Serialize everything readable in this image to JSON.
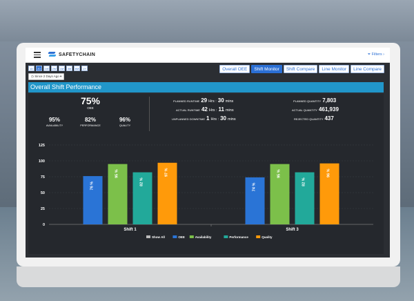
{
  "app": {
    "brand": "SAFETYCHAIN",
    "filters_label": "Filters ›"
  },
  "icons": {
    "menu": "hamburger-icon",
    "logo": "safetychain-logo",
    "clock": "clock-icon",
    "filter": "filter-icon"
  },
  "range_buttons": [
    "1D",
    "2D",
    "1W",
    "2W",
    "1M",
    "3M",
    "6M",
    "1Y"
  ],
  "range_active": "2D",
  "since_label": "Since 2 Days Ago ▾",
  "view_tabs": [
    {
      "label": "Overall OEE",
      "active": false
    },
    {
      "label": "Shift Monitor",
      "active": true
    },
    {
      "label": "Shift Compare",
      "active": false
    },
    {
      "label": "Line Monitor",
      "active": false
    },
    {
      "label": "Line Compare",
      "active": false
    }
  ],
  "section_title": "Overall Shift Performance",
  "summary": {
    "oee": {
      "value": "75%",
      "label": "OEE"
    },
    "availability": {
      "value": "95%",
      "label": "AVAILABILITY"
    },
    "performance": {
      "value": "82%",
      "label": "PERFORMANCE"
    },
    "quality": {
      "value": "96%",
      "label": "QUALITY"
    },
    "planned_runtime": {
      "label": "PLANNED RUNTIME",
      "hrs": "29",
      "mins": "30",
      "hrs_unit": "Hrs :",
      "mins_unit": "mins"
    },
    "actual_runtime": {
      "label": "ACTUAL RUNTIME",
      "hrs": "42",
      "mins": "11",
      "hrs_unit": "Hrs :",
      "mins_unit": "mins"
    },
    "unplanned_downtime": {
      "label": "UNPLANNED DOWNTIME",
      "hrs": "1",
      "mins": "30",
      "hrs_unit": "Hrs :",
      "mins_unit": "mins"
    },
    "planned_quantity": {
      "label": "PLANNED QUANTITY",
      "value": "7,803"
    },
    "actual_quantity": {
      "label": "ACTUAL QUANTITY",
      "value": "461,939"
    },
    "rejected_quantity": {
      "label": "REJECTED QUANTITY",
      "value": "437"
    }
  },
  "chart_data": {
    "type": "bar",
    "categories": [
      "Shift 1",
      "Shift 3"
    ],
    "series": [
      {
        "name": "OEE",
        "color": "#2a74d6",
        "values": [
          76,
          74
        ]
      },
      {
        "name": "Availability",
        "color": "#7cc04a",
        "values": [
          95,
          95
        ]
      },
      {
        "name": "Performance",
        "color": "#22a99a",
        "values": [
          82,
          82
        ]
      },
      {
        "name": "Quality",
        "color": "#ff9a0a",
        "values": [
          97,
          96
        ]
      }
    ],
    "ylim": [
      0,
      125
    ],
    "yticks": [
      0,
      25,
      50,
      75,
      100,
      125
    ],
    "grid": true,
    "legend_position": "bottom",
    "legend_extra": {
      "name": "Show All",
      "color": "#bbbbbb"
    },
    "value_label_suffix": " %"
  }
}
